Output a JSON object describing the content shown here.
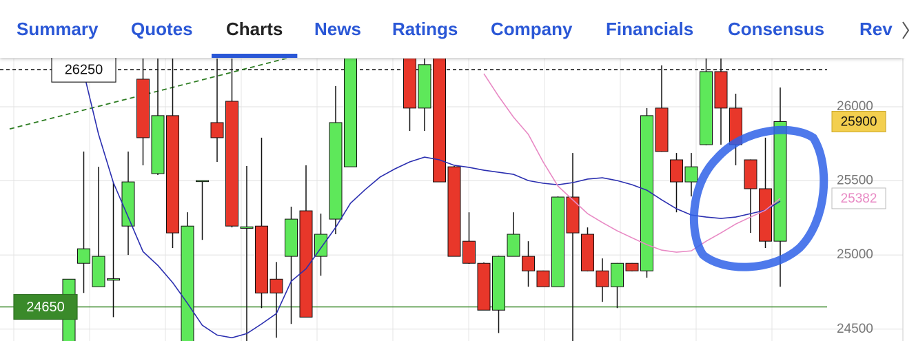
{
  "tabs": [
    {
      "label": "Summary"
    },
    {
      "label": "Quotes"
    },
    {
      "label": "Charts",
      "selected": true
    },
    {
      "label": "News"
    },
    {
      "label": "Ratings"
    },
    {
      "label": "Company"
    },
    {
      "label": "Financials"
    },
    {
      "label": "Consensus"
    },
    {
      "label": "Rev"
    }
  ],
  "chart_data": {
    "type": "candlestick",
    "up_color": "#5ee85a",
    "down_color": "#e8372a",
    "open": [
      24380,
      24944,
      24786,
      24830,
      25195,
      26186,
      25549,
      25940,
      24400,
      25495,
      25893,
      26037,
      25180,
      25195,
      24837,
      24991,
      25298,
      24991,
      25242,
      25595,
      null,
      null,
      null,
      26330,
      25991,
      26330,
      25595,
      25093,
      24944,
      24628,
      24991,
      24991,
      24893,
      24786,
      25391,
      25140,
      24893,
      24786,
      24944,
      24893,
      25991,
      25642,
      25493,
      25744,
      26237,
      25991,
      25642,
      25447,
      25093
    ],
    "high": [
      24837,
      25698,
      25595,
      25488,
      25698,
      26400,
      26400,
      26400,
      25288,
      25502,
      26400,
      26400,
      25600,
      25791,
      24953,
      25326,
      25605,
      25279,
      26140,
      26400,
      null,
      null,
      null,
      26400,
      26400,
      26400,
      25600,
      25288,
      24950,
      24995,
      25288,
      25093,
      24895,
      25395,
      25688,
      25186,
      24977,
      24946,
      24946,
      25991,
      26279,
      25688,
      25688,
      26330,
      26330,
      26088,
      25645,
      25791,
      26130
    ],
    "low": [
      24350,
      24744,
      24786,
      24581,
      25000,
      25605,
      25540,
      25047,
      24380,
      25102,
      25628,
      25186,
      24420,
      24642,
      24442,
      24535,
      24581,
      24860,
      25140,
      25595,
      null,
      null,
      null,
      25837,
      25837,
      25493,
      24990,
      24940,
      24628,
      24474,
      24990,
      24786,
      24785,
      24785,
      24400,
      24890,
      24684,
      24642,
      24890,
      24847,
      25695,
      25288,
      25395,
      25740,
      25744,
      25605,
      25149,
      25047,
      24786
    ],
    "close": [
      24837,
      25042,
      24991,
      24840,
      25493,
      25791,
      25940,
      25149,
      25195,
      25502,
      25791,
      25195,
      25190,
      24744,
      24744,
      25242,
      24581,
      25140,
      25893,
      26360,
      null,
      null,
      null,
      25991,
      26284,
      25493,
      24991,
      24944,
      24628,
      24991,
      25140,
      24893,
      24786,
      25391,
      25149,
      24893,
      24786,
      24944,
      24893,
      25940,
      25698,
      25493,
      25595,
      26237,
      25991,
      25744,
      25447,
      25093,
      25900
    ],
    "series": [
      {
        "color": "#2b2fb0",
        "values": [
          null,
          26230,
          25814,
          25488,
          25256,
          25023,
          24930,
          24814,
          24674,
          24526,
          24460,
          24442,
          24470,
          24535,
          24605,
          24823,
          24907,
          25047,
          25186,
          25349,
          25442,
          25526,
          25581,
          25628,
          25660,
          25642,
          25605,
          25591,
          25572,
          25558,
          25544,
          25502,
          25484,
          25474,
          25488,
          25512,
          25521,
          25502,
          25474,
          25437,
          25372,
          25312,
          25270,
          25256,
          25247,
          25256,
          25279,
          25302,
          25363
        ]
      },
      {
        "color": "#e889c4",
        "values": [
          null,
          null,
          null,
          null,
          null,
          null,
          null,
          null,
          null,
          null,
          null,
          null,
          null,
          null,
          null,
          null,
          null,
          null,
          null,
          null,
          null,
          null,
          null,
          null,
          null,
          null,
          null,
          null,
          26223,
          26070,
          25930,
          25814,
          25628,
          25465,
          25372,
          25279,
          25219,
          25163,
          25116,
          25070,
          25033,
          25019,
          25028,
          25093,
          25149,
          25209,
          25256,
          25302,
          25382
        ]
      }
    ],
    "trendline": {
      "color": "#2e7d23",
      "x": [
        -4,
        16
      ],
      "values": [
        25850,
        26360
      ]
    },
    "reference_lines": [
      {
        "value": 26250,
        "color": "#000000",
        "dashed": true
      },
      {
        "value": 24650,
        "color": "#3a8a2a",
        "dashed": false
      }
    ],
    "ylim": [
      24420,
      26325
    ],
    "yticks": [
      24500,
      25000,
      25500,
      26000
    ],
    "grid": true
  }
}
